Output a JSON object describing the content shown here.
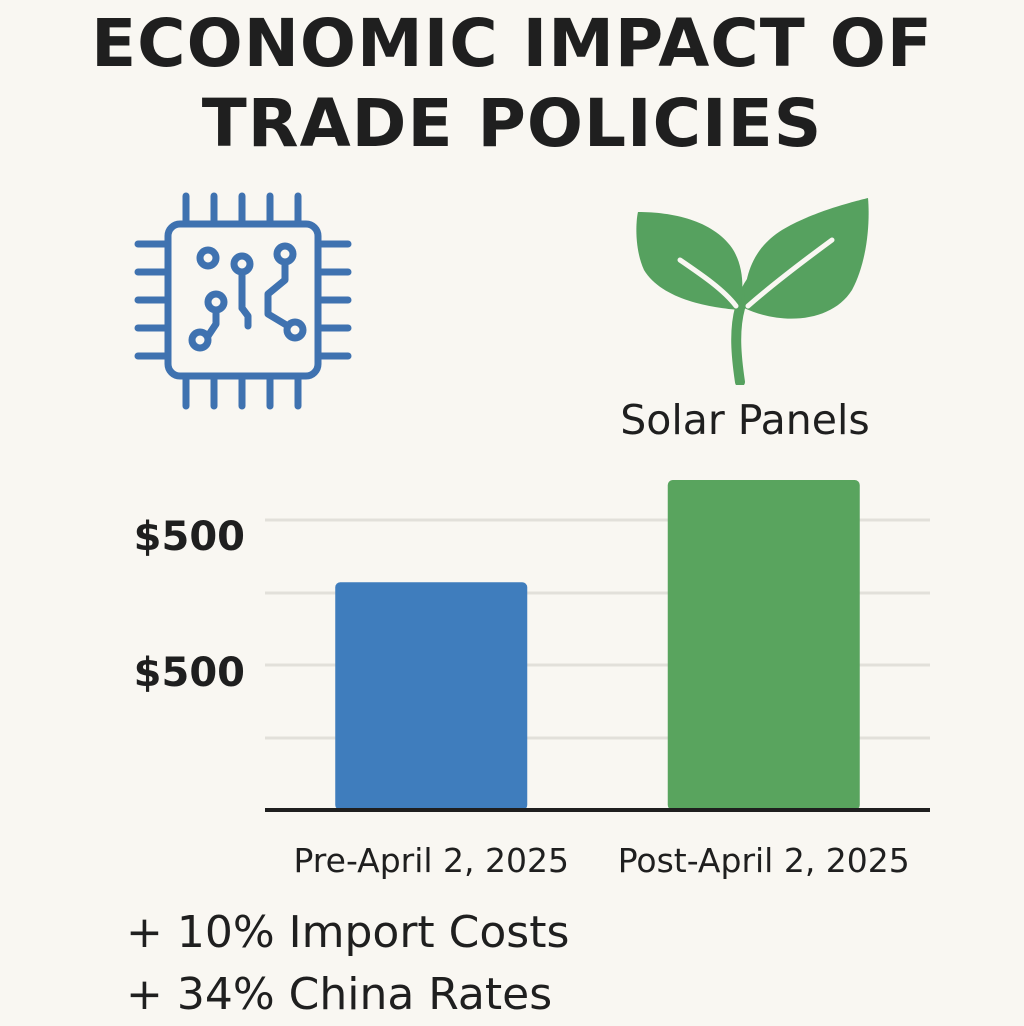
{
  "title": {
    "line1": "ECONOMIC IMPACT OF",
    "line2": "TRADE POLICIES"
  },
  "icons": [
    {
      "name": "circuit-chip-icon",
      "color": "#3f72b0"
    },
    {
      "name": "leaf-sprout-icon",
      "color": "#56a15f"
    }
  ],
  "category_label": "Solar Panels",
  "chart_data": {
    "type": "bar",
    "categories": [
      "Pre-April 2, 2025",
      "Post-April 2, 2025"
    ],
    "values": [
      0.69,
      1.0
    ],
    "colors": [
      "#3f7dbd",
      "#59a45e"
    ],
    "ytick_labels": [
      "$500",
      "$500"
    ],
    "grid": true,
    "xlabel": "",
    "ylabel": ""
  },
  "notes": [
    "+ 10% Import Costs",
    "+ 34% China Rates"
  ]
}
